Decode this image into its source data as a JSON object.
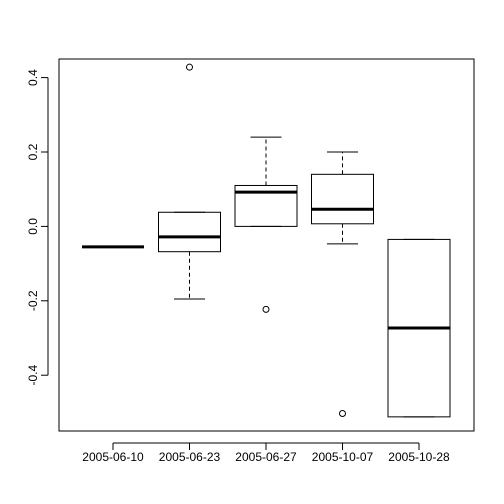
{
  "chart_data": {
    "type": "box",
    "title": "",
    "xlabel": "",
    "ylabel": "",
    "ylim": [
      -0.55,
      0.45
    ],
    "y_ticks": [
      {
        "value": -0.4,
        "label": "-0.4"
      },
      {
        "value": -0.2,
        "label": "-0.2"
      },
      {
        "value": 0.0,
        "label": "0.0"
      },
      {
        "value": 0.2,
        "label": "0.2"
      },
      {
        "value": 0.4,
        "label": "0.4"
      }
    ],
    "categories": [
      "2005-06-10",
      "2005-06-23",
      "2005-06-27",
      "2005-10-07",
      "2005-10-28"
    ],
    "boxes": [
      {
        "min": -0.055,
        "q1": -0.055,
        "median": -0.055,
        "q3": -0.055,
        "max": -0.055,
        "outliers": []
      },
      {
        "min": -0.195,
        "q1": -0.068,
        "median": -0.028,
        "q3": 0.038,
        "max": 0.038,
        "outliers": [
          0.428
        ]
      },
      {
        "min": 0.0,
        "q1": 0.0,
        "median": 0.092,
        "q3": 0.11,
        "max": 0.24,
        "outliers": [
          -0.223
        ]
      },
      {
        "min": -0.047,
        "q1": 0.007,
        "median": 0.046,
        "q3": 0.14,
        "max": 0.2,
        "outliers": [
          -0.503
        ]
      },
      {
        "min": -0.512,
        "q1": -0.512,
        "median": -0.273,
        "q3": -0.035,
        "max": -0.035,
        "outliers": []
      }
    ]
  }
}
